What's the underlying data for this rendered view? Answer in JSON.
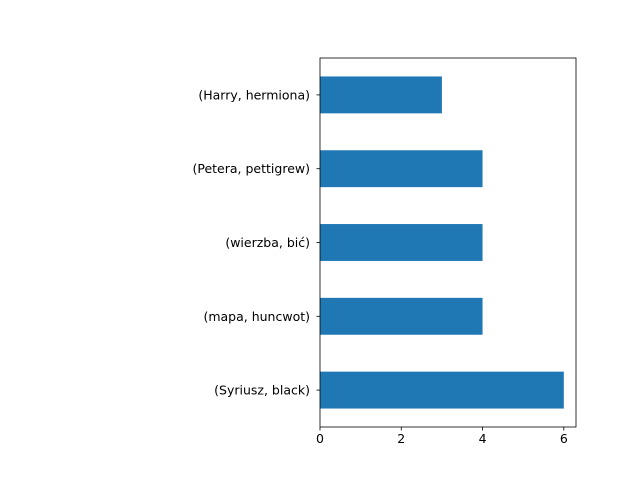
{
  "chart_data": {
    "type": "bar",
    "orientation": "horizontal",
    "title": "",
    "xlabel": "",
    "ylabel": "",
    "categories": [
      "(Syriusz, black)",
      "(mapa, huncwot)",
      "(wierzba, bić)",
      "(Petera, pettigrew)",
      "(Harry, hermiona)"
    ],
    "values": [
      6,
      4,
      4,
      4,
      3
    ],
    "xlim": [
      0,
      6.3
    ],
    "xticks": [
      0,
      2,
      4,
      6
    ],
    "xtick_labels": [
      "0",
      "2",
      "4",
      "6"
    ],
    "bar_color": "#1f77b4",
    "grid": false,
    "legend": false
  }
}
